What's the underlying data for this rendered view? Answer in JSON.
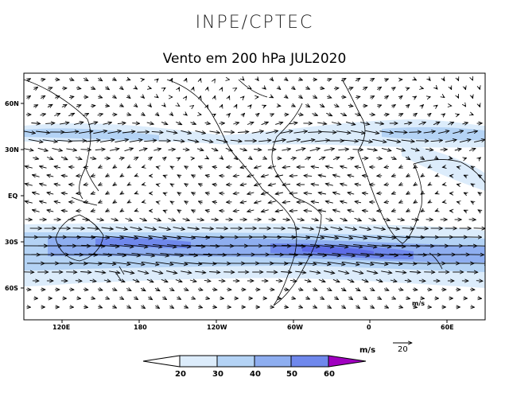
{
  "header": {
    "org": "INPE/CPTEC",
    "title": "Vento em 200 hPa JUL2020"
  },
  "map": {
    "lat_labels": [
      "60N",
      "30N",
      "EQ",
      "30S",
      "60S"
    ],
    "lon_labels": [
      "120E",
      "180",
      "120W",
      "60W",
      "0",
      "60E"
    ],
    "corner_label": "m/s"
  },
  "colorbar": {
    "unit": "m/s",
    "ticks": [
      "20",
      "30",
      "40",
      "50",
      "60"
    ],
    "colors": [
      "#ffffff",
      "#dcecfb",
      "#b4d3f5",
      "#8eaef0",
      "#6f88ec",
      "#5d6ce6",
      "#a000c0"
    ]
  },
  "reference_vector": {
    "value": "20"
  }
}
